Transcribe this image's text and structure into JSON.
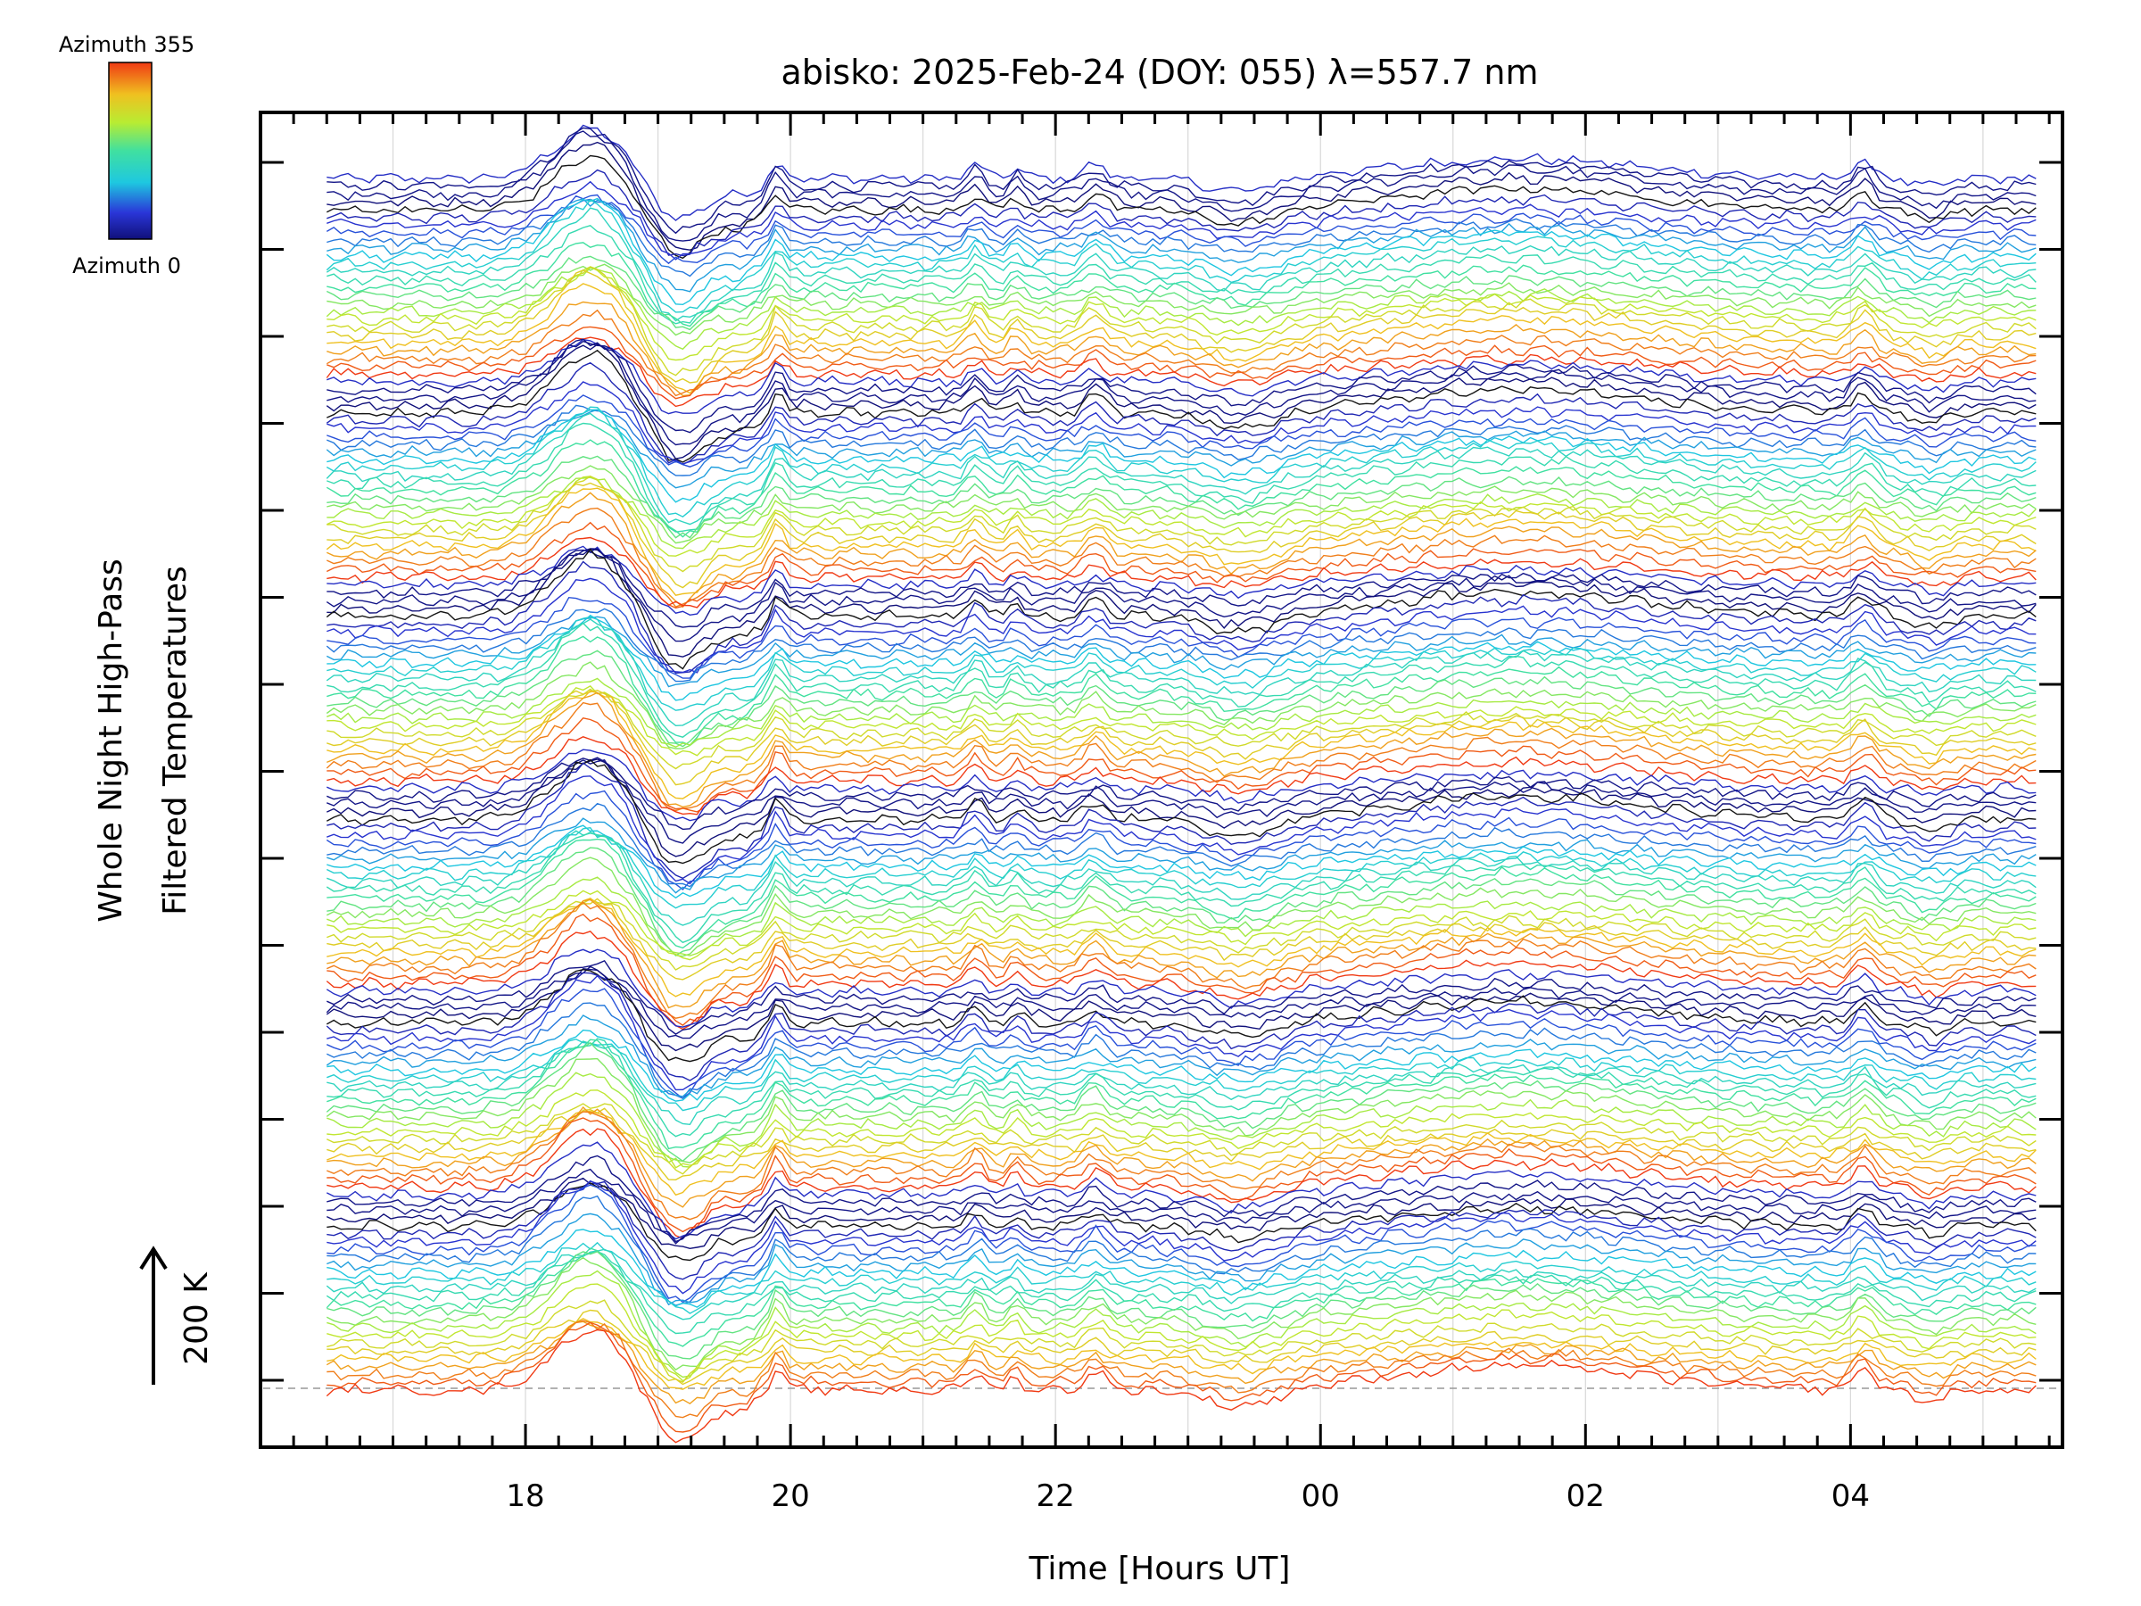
{
  "chart_data": {
    "type": "line",
    "title": "abisko: 2025-Feb-24 (DOY: 055) λ=557.7 nm",
    "xlabel": "Time [Hours UT]",
    "ylabel_line1": "Whole Night High-Pass",
    "ylabel_line2": "Filtered Temperatures",
    "scale_label": "200 K",
    "colorbar": {
      "label_top": "Azimuth 355",
      "label_bottom": "Azimuth 0",
      "azimuth_min": 0,
      "azimuth_max": 355,
      "colormap": "rainbow (dark blue to red)"
    },
    "x_axis": {
      "unit": "hours UT",
      "range": [
        16.0,
        29.6
      ],
      "data_range": [
        16.5,
        29.4
      ],
      "major_ticks": [
        18,
        20,
        22,
        24,
        26,
        28
      ],
      "tick_labels": [
        "18",
        "20",
        "22",
        "00",
        "02",
        "04"
      ]
    },
    "y_axis": {
      "tick_labels": "none",
      "grid": false
    },
    "grid": "vertical lines at hourly intervals",
    "baseline": "dashed",
    "stacks": 6,
    "traces_per_stack": 26,
    "notable_features": [
      {
        "time_hours": 18.5,
        "description": "large positive peak"
      },
      {
        "time_hours": 19.2,
        "description": "deep trough"
      },
      {
        "time_hours": 19.9,
        "description": "sharp spike"
      },
      {
        "time_hours": 21.4,
        "description": "small peak"
      },
      {
        "time_hours": 21.7,
        "description": "small peak"
      },
      {
        "time_hours": 23.4,
        "description": "trough"
      },
      {
        "time_hours": 25.2,
        "description": "broad hump begins"
      },
      {
        "time_hours": 28.1,
        "description": "peak"
      }
    ],
    "colors": {
      "background": "#ffffff",
      "axes": "#000000",
      "grid": "#d8d8d8",
      "baseline": "#999999"
    }
  }
}
